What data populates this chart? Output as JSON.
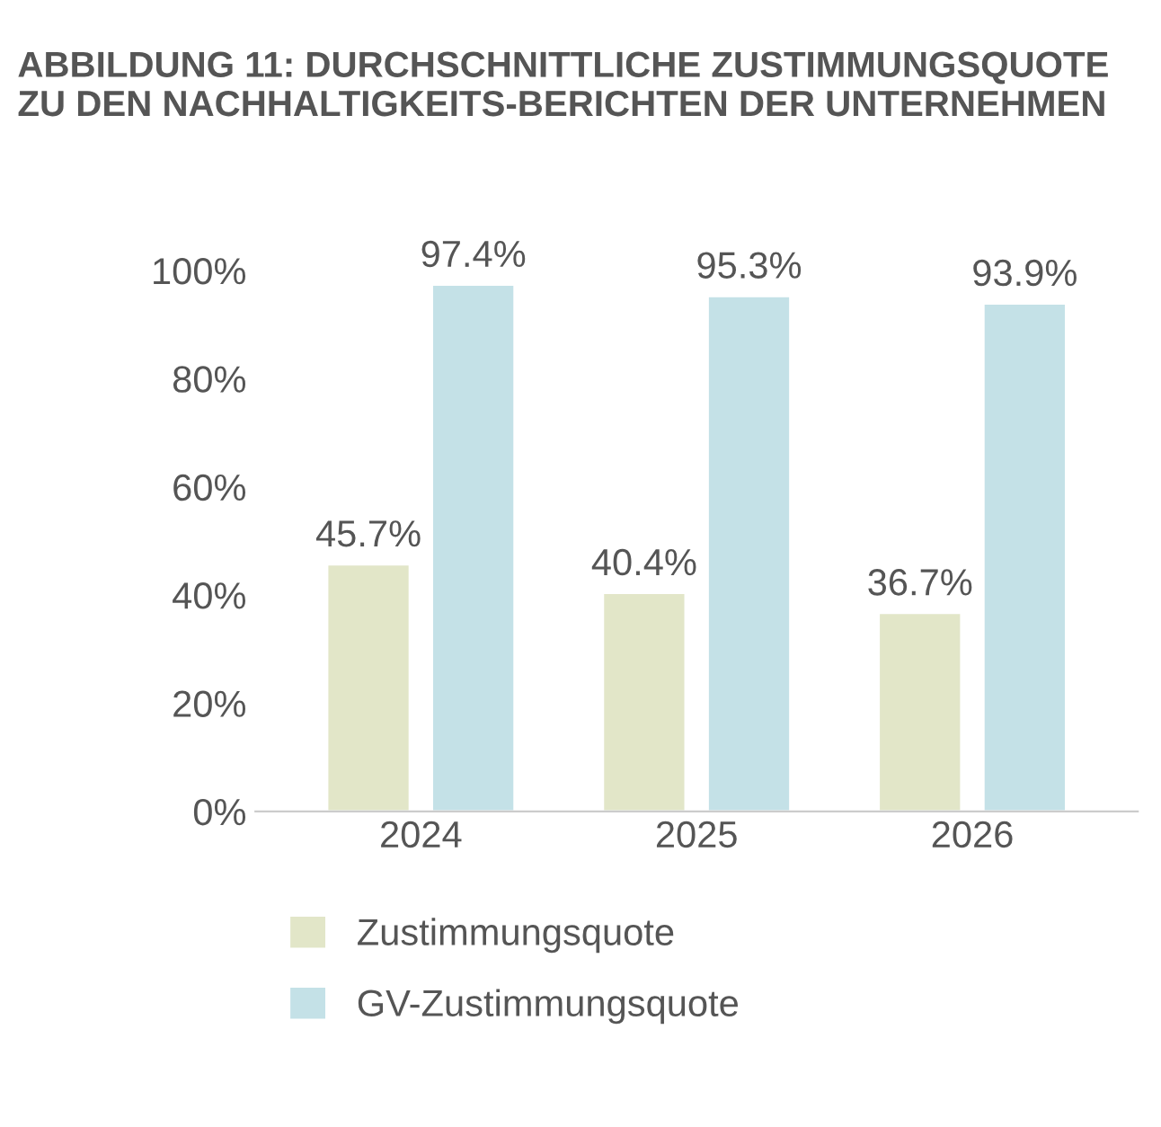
{
  "chart_data": {
    "type": "bar",
    "title": "ABBILDUNG 11: DURCHSCHNITTLICHE ZUSTIMMUNGSQUOTE ZU DEN NACHHALTIGKEITS-BERICHTEN DER UNTERNEHMEN",
    "categories": [
      "2024",
      "2025",
      "2026"
    ],
    "series": [
      {
        "name": "Zustimmungsquote",
        "color": "#e2e6c8",
        "values": [
          45.7,
          40.4,
          36.7
        ],
        "value_labels": [
          "45.7%",
          "40.4%",
          "36.7%"
        ]
      },
      {
        "name": "GV-Zustimmungsquote",
        "color": "#c4e1e7",
        "values": [
          97.4,
          95.3,
          93.9
        ],
        "value_labels": [
          "97.4%",
          "95.3%",
          "93.9%"
        ]
      }
    ],
    "ylim": [
      0,
      100
    ],
    "yticks": [
      {
        "value": 0,
        "label": "0%"
      },
      {
        "value": 20,
        "label": "20%"
      },
      {
        "value": 40,
        "label": "40%"
      },
      {
        "value": 60,
        "label": "60%"
      },
      {
        "value": 80,
        "label": "80%"
      },
      {
        "value": 100,
        "label": "100%"
      }
    ],
    "grid": false,
    "legend": "bottom"
  }
}
